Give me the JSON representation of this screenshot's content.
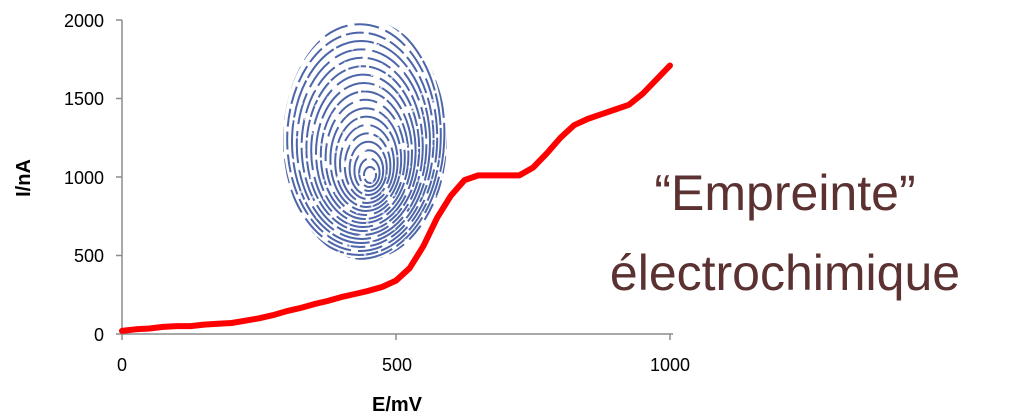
{
  "chart_data": {
    "type": "line",
    "title": "",
    "xlabel": "E/mV",
    "ylabel": "I/nA",
    "xlim": [
      0,
      1000
    ],
    "ylim": [
      0,
      2000
    ],
    "xticks": [
      "0",
      "500",
      "1000"
    ],
    "yticks": [
      "0",
      "500",
      "1000",
      "1500",
      "2000"
    ],
    "grid": false,
    "legend": "none",
    "series": [
      {
        "color": "#ff0000",
        "x": [
          0,
          25,
          50,
          75,
          100,
          125,
          150,
          175,
          200,
          225,
          250,
          275,
          300,
          325,
          350,
          375,
          400,
          425,
          450,
          475,
          500,
          525,
          550,
          575,
          600,
          625,
          650,
          675,
          700,
          725,
          750,
          775,
          800,
          825,
          850,
          875,
          900,
          925,
          950,
          975,
          1000
        ],
        "y": [
          20,
          30,
          35,
          45,
          50,
          50,
          60,
          65,
          70,
          85,
          100,
          120,
          145,
          165,
          190,
          210,
          235,
          255,
          275,
          300,
          340,
          420,
          560,
          740,
          880,
          980,
          1010,
          1010,
          1010,
          1010,
          1060,
          1150,
          1250,
          1330,
          1370,
          1400,
          1430,
          1460,
          1530,
          1620,
          1710
        ]
      }
    ]
  },
  "caption": {
    "line1": "“Empreinte”",
    "line2": "électrochimique",
    "color": "#5b3131"
  },
  "fingerprint_image": {
    "icon": "fingerprint-icon",
    "color": "#2e4a9a"
  }
}
